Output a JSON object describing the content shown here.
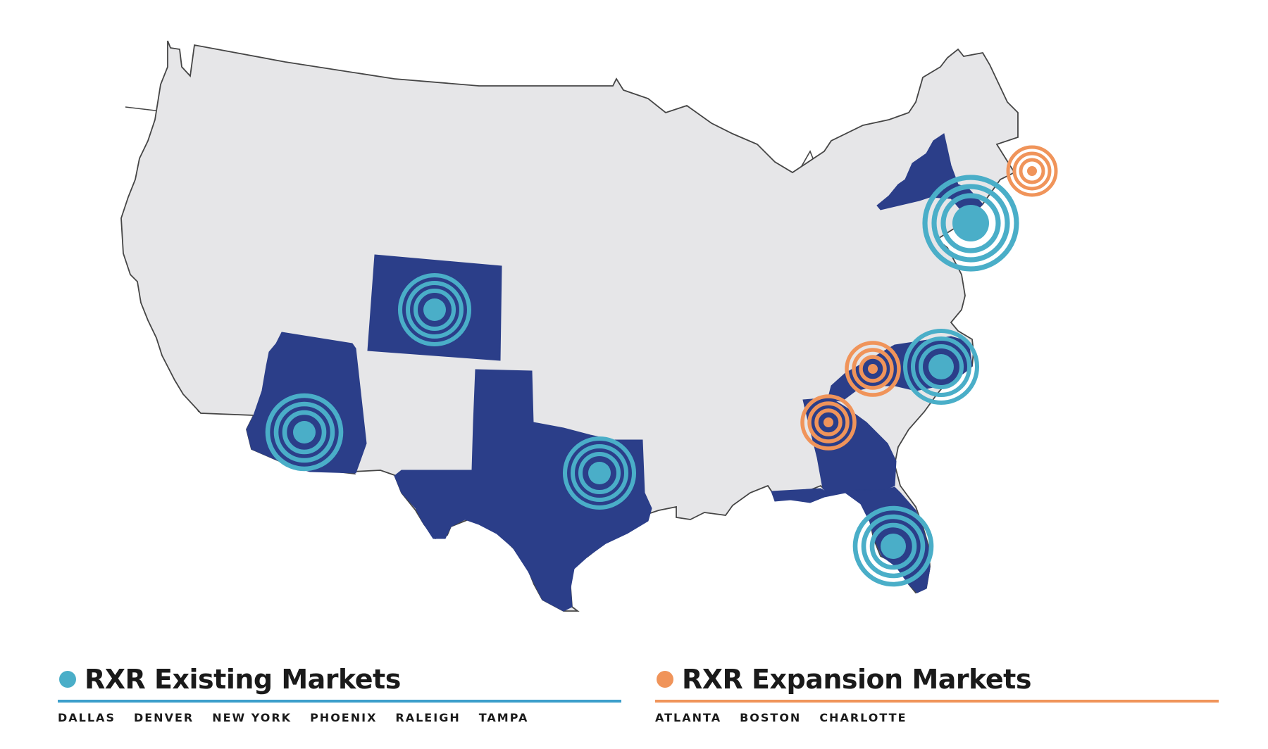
{
  "colors": {
    "existing": "#4aaec8",
    "existing_rule": "#3c9fcb",
    "expansion": "#f0945a",
    "highlight_state": "#2b3e89",
    "base_state": "#e6e6e8",
    "border": "#454545"
  },
  "markets": {
    "existing": {
      "title": "RXR Existing Markets",
      "cities": [
        "DALLAS",
        "DENVER",
        "NEW YORK",
        "PHOENIX",
        "RALEIGH",
        "TAMPA"
      ]
    },
    "expansion": {
      "title": "RXR Expansion Markets",
      "cities": [
        "ATLANTA",
        "BOSTON",
        "CHARLOTTE"
      ]
    }
  },
  "map": {
    "highlighted_states": [
      "Arizona",
      "Colorado",
      "Texas",
      "New York",
      "North Carolina",
      "Georgia",
      "Florida"
    ],
    "existing_market_locations": [
      "Phoenix",
      "Denver",
      "Dallas",
      "New York",
      "Raleigh",
      "Tampa"
    ],
    "expansion_market_locations": [
      "Boston",
      "Charlotte",
      "Atlanta"
    ]
  }
}
